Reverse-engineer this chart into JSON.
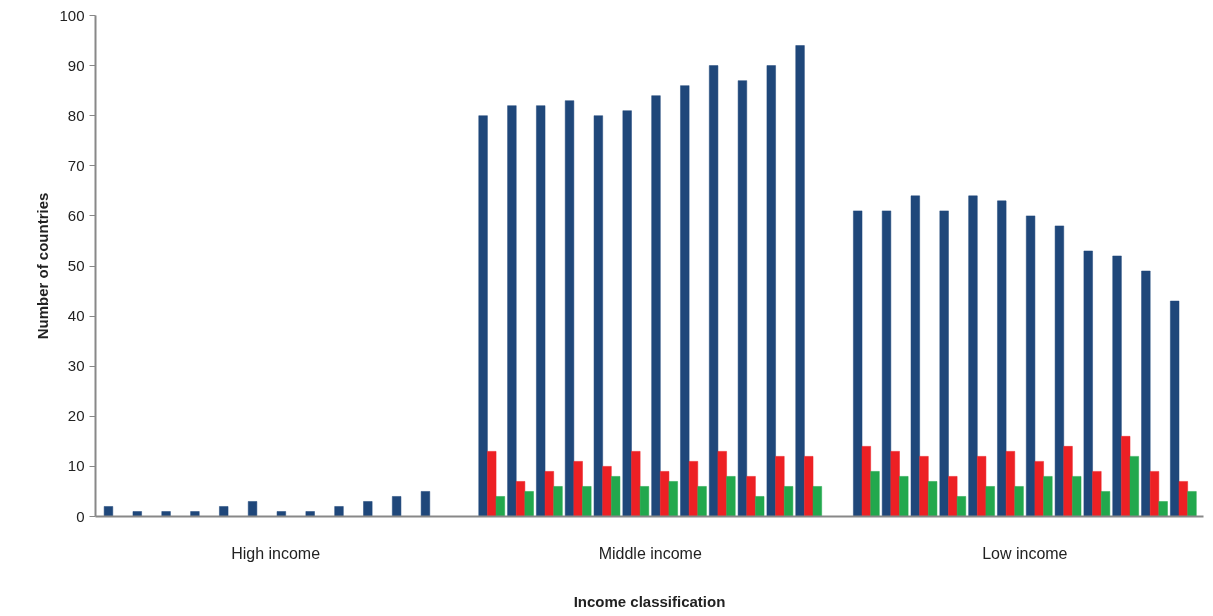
{
  "chart_data": {
    "type": "bar",
    "xlabel": "Income classification",
    "ylabel": "Number of countries",
    "categories": [
      null,
      null,
      null,
      null,
      null,
      null,
      null,
      null,
      null,
      null,
      null,
      null,
      null,
      null,
      null,
      null,
      null,
      null,
      null,
      null,
      null,
      null,
      null,
      null,
      null,
      null,
      null,
      null,
      null,
      null,
      null,
      null,
      null,
      null,
      null,
      null,
      null,
      null
    ],
    "annotations": [
      "High income",
      "Middle income",
      "Low income"
    ],
    "series": [
      {
        "color": "#1f477a",
        "values": [
          2,
          1,
          1,
          1,
          2,
          3,
          1,
          1,
          2,
          3,
          4,
          5,
          null,
          80,
          82,
          82,
          83,
          80,
          81,
          84,
          86,
          90,
          87,
          90,
          94,
          null,
          61,
          61,
          64,
          61,
          64,
          63,
          60,
          58,
          53,
          52,
          49,
          43
        ]
      },
      {
        "color": "#ed2024",
        "values": [
          null,
          null,
          null,
          null,
          null,
          null,
          null,
          null,
          null,
          null,
          null,
          null,
          null,
          13,
          7,
          9,
          11,
          10,
          13,
          9,
          11,
          13,
          8,
          12,
          12,
          null,
          14,
          13,
          12,
          8,
          12,
          13,
          11,
          14,
          9,
          16,
          9,
          7
        ]
      },
      {
        "color": "#22a84d",
        "values": [
          null,
          null,
          null,
          null,
          null,
          null,
          null,
          null,
          null,
          null,
          null,
          null,
          null,
          4,
          5,
          6,
          6,
          8,
          6,
          7,
          6,
          8,
          4,
          6,
          6,
          null,
          9,
          8,
          7,
          4,
          6,
          6,
          8,
          8,
          5,
          12,
          3,
          5
        ]
      }
    ],
    "ylim": [
      0,
      100
    ],
    "yticks": [
      0,
      10,
      20,
      30,
      40,
      50,
      60,
      70,
      80,
      90,
      100
    ],
    "grid": false,
    "legend": false
  }
}
